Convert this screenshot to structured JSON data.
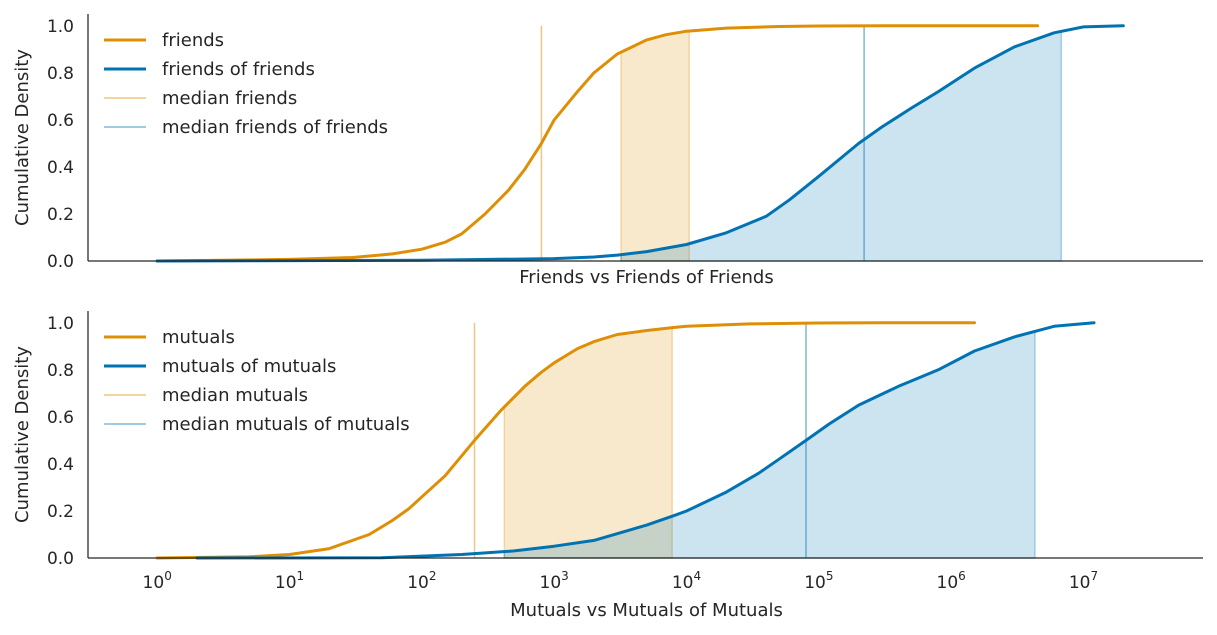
{
  "chart_data": [
    {
      "type": "line",
      "x_scale": "log",
      "xlim": [
        1,
        100000000
      ],
      "ylim": [
        0,
        1.05
      ],
      "xlabel": "Friends vs Friends of Friends",
      "ylabel": "Cumulative Density",
      "show_xticklabels": false,
      "yticks": [
        "0.0",
        "0.2",
        "0.4",
        "0.6",
        "0.8",
        "1.0"
      ],
      "legend": {
        "placement": "upper-left",
        "entries": [
          "friends",
          "friends of friends",
          "median friends",
          "median friends of friends"
        ]
      },
      "series": [
        {
          "name": "friends",
          "color": "#de8f05",
          "x": [
            1,
            10,
            30,
            60,
            100,
            150,
            200,
            300,
            450,
            600,
            800,
            1000,
            1500,
            2000,
            3000,
            5000,
            7000,
            10000,
            20000,
            50000,
            100000,
            300000,
            1000000,
            4500000
          ],
          "y": [
            0.0,
            0.007,
            0.015,
            0.03,
            0.05,
            0.08,
            0.115,
            0.2,
            0.3,
            0.39,
            0.5,
            0.6,
            0.72,
            0.8,
            0.88,
            0.94,
            0.962,
            0.977,
            0.99,
            0.997,
            0.999,
            1.0,
            1.0,
            1.0
          ]
        },
        {
          "name": "friends of friends",
          "color": "#0173b2",
          "x": [
            1,
            100,
            1000,
            2000,
            3000,
            5000,
            10000,
            20000,
            40000,
            60000,
            100000,
            200000,
            300000,
            500000,
            800000,
            1500000,
            3000000,
            6000000,
            10000000,
            20000000
          ],
          "y": [
            0.0,
            0.003,
            0.01,
            0.017,
            0.025,
            0.04,
            0.07,
            0.12,
            0.19,
            0.26,
            0.36,
            0.5,
            0.57,
            0.65,
            0.72,
            0.82,
            0.91,
            0.97,
            0.995,
            1.0
          ]
        }
      ],
      "medians": [
        {
          "name": "median friends",
          "x": 800,
          "color": "#de8f05"
        },
        {
          "name": "median friends of friends",
          "x": 220000,
          "color": "#0173b2"
        }
      ],
      "shaded_ranges": [
        {
          "series": "friends",
          "x_range": [
            3200,
            10500
          ],
          "color": "#de8f05"
        },
        {
          "series": "friends of friends",
          "x_range": [
            3200,
            6800000
          ],
          "color": "#0173b2"
        }
      ]
    },
    {
      "type": "line",
      "x_scale": "log",
      "xlim": [
        1,
        100000000
      ],
      "ylim": [
        0,
        1.05
      ],
      "xlabel": "Mutuals vs Mutuals of Mutuals",
      "ylabel": "Cumulative Density",
      "show_xticklabels": true,
      "xticks": [
        {
          "value": 1,
          "base": "10",
          "exp": "0"
        },
        {
          "value": 10,
          "base": "10",
          "exp": "1"
        },
        {
          "value": 100,
          "base": "10",
          "exp": "2"
        },
        {
          "value": 1000,
          "base": "10",
          "exp": "3"
        },
        {
          "value": 10000,
          "base": "10",
          "exp": "4"
        },
        {
          "value": 100000,
          "base": "10",
          "exp": "5"
        },
        {
          "value": 1000000,
          "base": "10",
          "exp": "6"
        },
        {
          "value": 10000000,
          "base": "10",
          "exp": "7"
        }
      ],
      "yticks": [
        "0.0",
        "0.2",
        "0.4",
        "0.6",
        "0.8",
        "1.0"
      ],
      "legend": {
        "placement": "upper-left",
        "entries": [
          "mutuals",
          "mutuals of mutuals",
          "median mutuals",
          "median mutuals of mutuals"
        ]
      },
      "series": [
        {
          "name": "mutuals",
          "color": "#de8f05",
          "x": [
            1,
            5,
            10,
            20,
            40,
            60,
            80,
            100,
            150,
            250,
            400,
            600,
            800,
            1000,
            1500,
            2000,
            3000,
            5000,
            8000,
            10000,
            30000,
            100000,
            300000,
            1500000
          ],
          "y": [
            0.0,
            0.005,
            0.015,
            0.04,
            0.1,
            0.16,
            0.21,
            0.26,
            0.35,
            0.5,
            0.63,
            0.73,
            0.79,
            0.83,
            0.89,
            0.92,
            0.95,
            0.967,
            0.98,
            0.985,
            0.995,
            0.999,
            1.0,
            1.0
          ]
        },
        {
          "name": "mutuals of mutuals",
          "color": "#0173b2",
          "x": [
            2,
            50,
            200,
            500,
            1000,
            2000,
            5000,
            8000,
            10000,
            20000,
            35000,
            50000,
            80000,
            120000,
            200000,
            400000,
            800000,
            1500000,
            3000000,
            6000000,
            12000000
          ],
          "y": [
            0.0,
            0.001,
            0.015,
            0.03,
            0.05,
            0.075,
            0.14,
            0.18,
            0.2,
            0.28,
            0.36,
            0.42,
            0.5,
            0.57,
            0.65,
            0.73,
            0.8,
            0.88,
            0.94,
            0.985,
            1.0
          ]
        }
      ],
      "medians": [
        {
          "name": "median mutuals",
          "x": 250,
          "color": "#de8f05"
        },
        {
          "name": "median mutuals of mutuals",
          "x": 80000,
          "color": "#0173b2"
        }
      ],
      "shaded_ranges": [
        {
          "series": "mutuals",
          "x_range": [
            420,
            7800
          ],
          "color": "#de8f05"
        },
        {
          "series": "mutuals of mutuals",
          "x_range": [
            420,
            4300000
          ],
          "color": "#0173b2"
        }
      ]
    }
  ]
}
